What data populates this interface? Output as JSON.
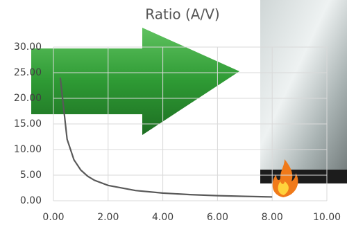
{
  "chart_data": {
    "type": "line",
    "title": "Ratio (A/V)",
    "x": [
      0.25,
      0.5,
      0.75,
      1,
      1.25,
      1.5,
      2,
      3,
      4,
      5,
      6,
      7,
      8
    ],
    "series": [
      {
        "name": "Ratio",
        "color": "#595959",
        "values": [
          24,
          12,
          8,
          6,
          4.8,
          4,
          3,
          2,
          1.5,
          1.2,
          1,
          0.86,
          0.75
        ]
      }
    ],
    "xlim": [
      0,
      10
    ],
    "xticks": [
      {
        "value": 0,
        "label": "0.00"
      },
      {
        "value": 2,
        "label": "2.00"
      },
      {
        "value": 4,
        "label": "4.00"
      },
      {
        "value": 6,
        "label": "6.00"
      },
      {
        "value": 8,
        "label": "8.00"
      },
      {
        "value": 10,
        "label": "10.00"
      }
    ],
    "ylim": [
      0,
      30
    ],
    "yticks": [
      {
        "value": 0,
        "label": "0.00"
      },
      {
        "value": 5,
        "label": "5.00"
      },
      {
        "value": 10,
        "label": "10.00"
      },
      {
        "value": 15,
        "label": "15.00"
      },
      {
        "value": 20,
        "label": "20.00"
      },
      {
        "value": 25,
        "label": "25.00"
      },
      {
        "value": 30,
        "label": "30.00"
      }
    ],
    "grid": true
  }
}
